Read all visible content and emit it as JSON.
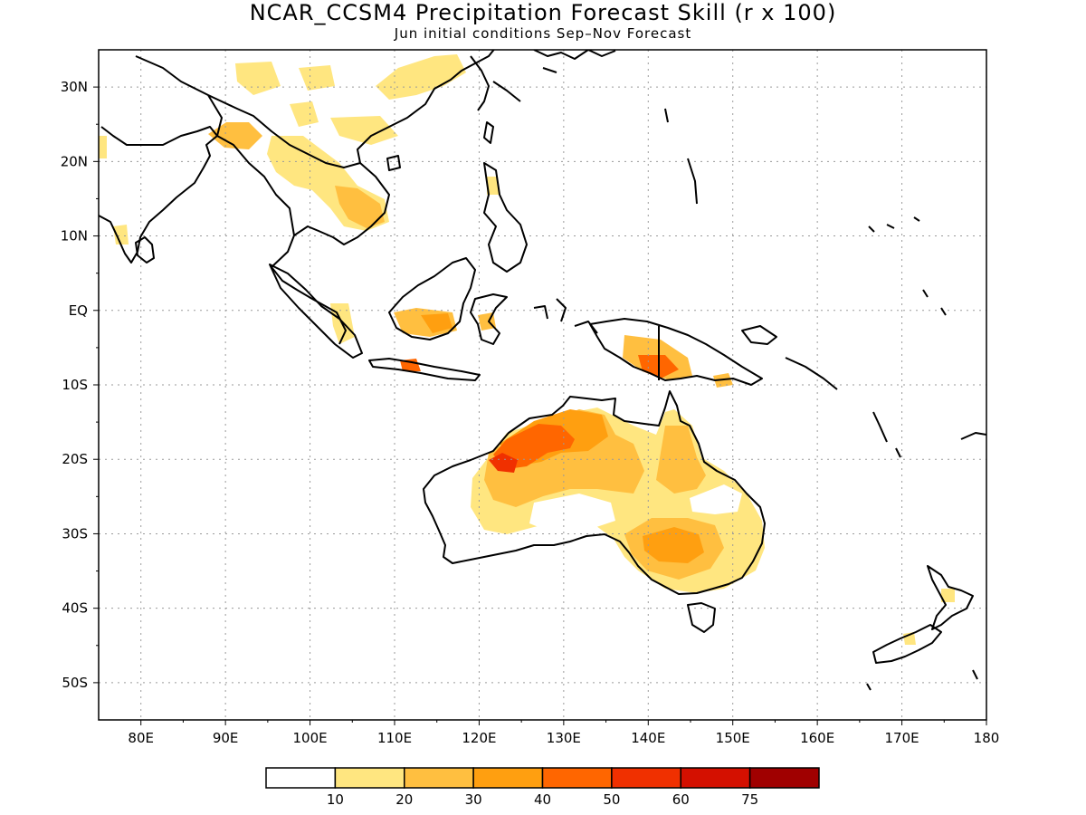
{
  "title": "NCAR_CCSM4 Precipitation Forecast Skill (r x 100)",
  "subtitle": "Jun initial conditions  Sep–Nov Forecast",
  "map": {
    "lon_range": [
      75,
      180
    ],
    "lat_range": [
      -55,
      35
    ],
    "grid": true,
    "lat_ticks": [
      {
        "value": 30,
        "label": "30N"
      },
      {
        "value": 20,
        "label": "20N"
      },
      {
        "value": 10,
        "label": "10N"
      },
      {
        "value": 0,
        "label": "EQ"
      },
      {
        "value": -10,
        "label": "10S"
      },
      {
        "value": -20,
        "label": "20S"
      },
      {
        "value": -30,
        "label": "30S"
      },
      {
        "value": -40,
        "label": "40S"
      },
      {
        "value": -50,
        "label": "50S"
      }
    ],
    "lon_ticks": [
      {
        "value": 80,
        "label": "80E"
      },
      {
        "value": 90,
        "label": "90E"
      },
      {
        "value": 100,
        "label": "100E"
      },
      {
        "value": 110,
        "label": "110E"
      },
      {
        "value": 120,
        "label": "120E"
      },
      {
        "value": 130,
        "label": "130E"
      },
      {
        "value": 140,
        "label": "140E"
      },
      {
        "value": 150,
        "label": "150E"
      },
      {
        "value": 160,
        "label": "160E"
      },
      {
        "value": 170,
        "label": "170E"
      },
      {
        "value": 180,
        "label": "180"
      }
    ]
  },
  "colorbar": {
    "bins": [
      {
        "color": "#ffffff"
      },
      {
        "color": "#ffe680"
      },
      {
        "color": "#ffbf40"
      },
      {
        "color": "#ff9f10"
      },
      {
        "color": "#ff6600"
      },
      {
        "color": "#f03000"
      },
      {
        "color": "#d41000"
      },
      {
        "color": "#a00000"
      }
    ],
    "labels": [
      "10",
      "20",
      "30",
      "40",
      "50",
      "60",
      "75"
    ]
  }
}
